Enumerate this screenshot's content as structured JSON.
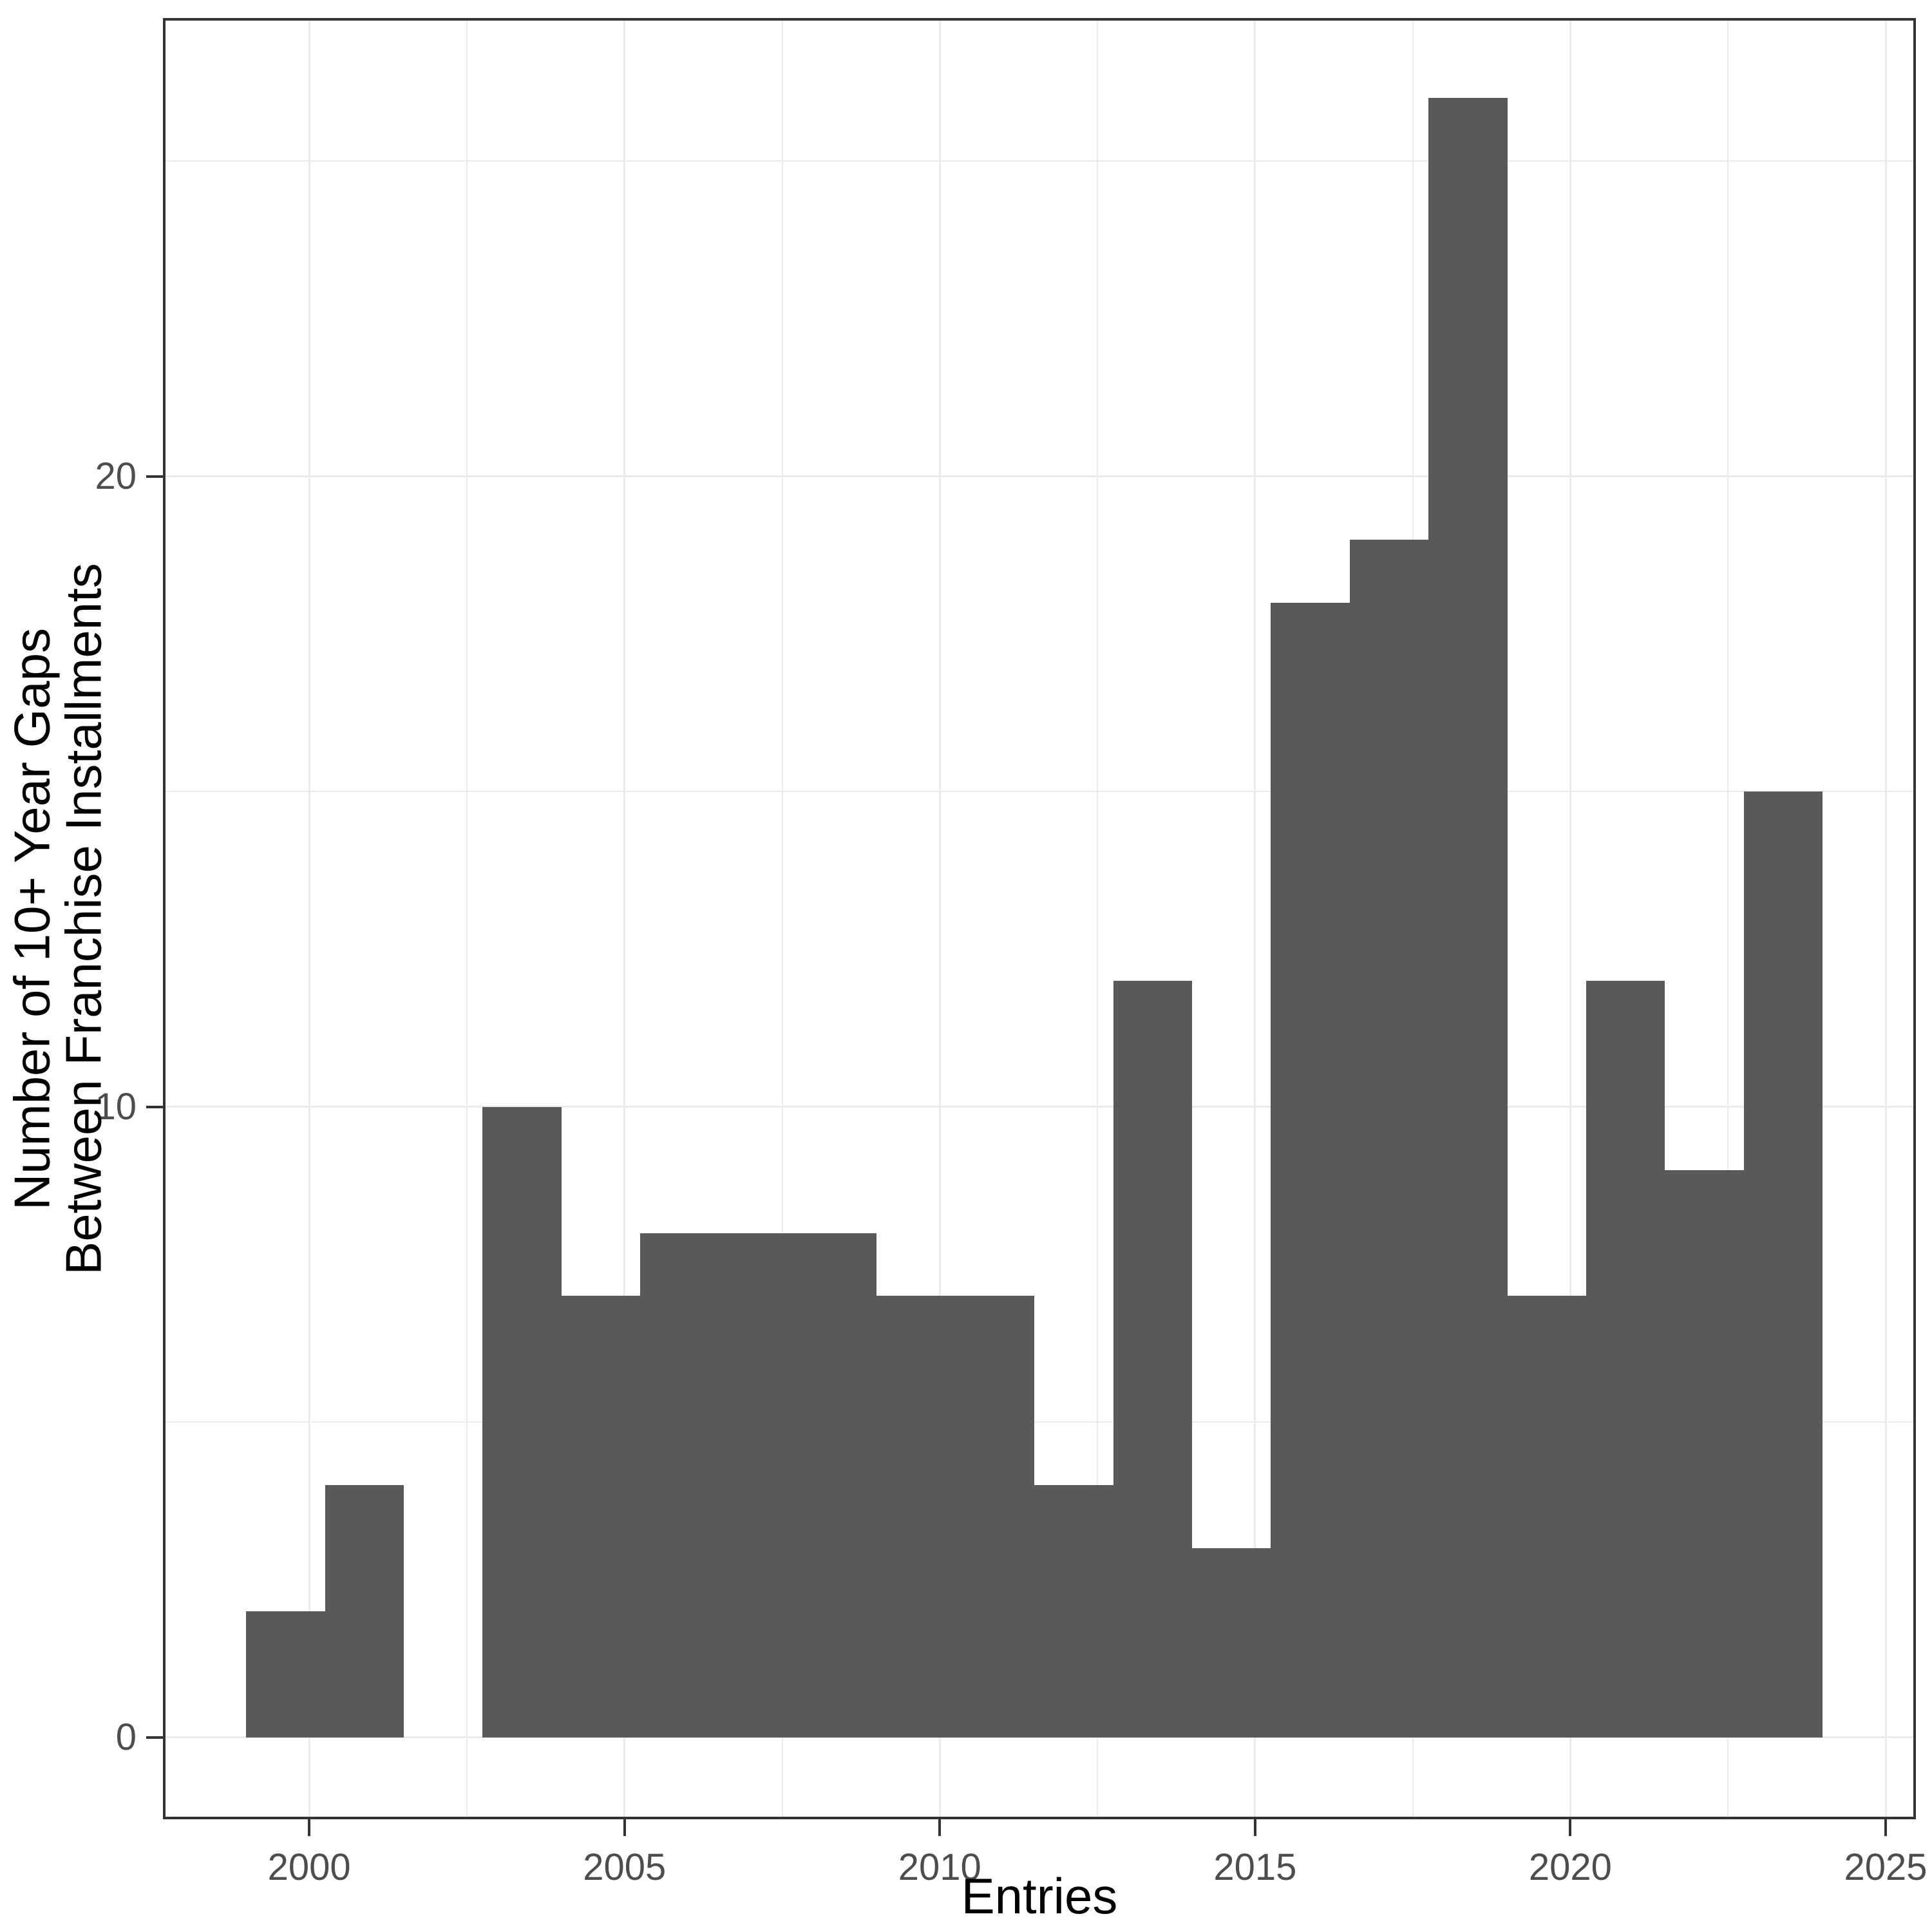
{
  "chart_data": {
    "type": "bar",
    "subtype": "histogram",
    "title": "",
    "xlabel": "Entries",
    "ylabel_line1": "Number of 10+ Year Gaps",
    "ylabel_line2": "Between Franchise Installments",
    "bin_start": 1999,
    "bin_width": 1.25,
    "values": [
      2,
      4,
      0,
      10,
      7,
      8,
      8,
      8,
      7,
      7,
      4,
      12,
      3,
      18,
      19,
      26,
      7,
      12,
      9,
      15
    ],
    "bin_edges": [
      1999,
      2000.25,
      2001.5,
      2002.75,
      2004,
      2005.25,
      2006.5,
      2007.75,
      2009,
      2010.25,
      2011.5,
      2012.75,
      2014,
      2015.25,
      2016.5,
      2017.75,
      2019,
      2020.25,
      2021.5,
      2022.75,
      2024
    ],
    "x_major_ticks": [
      2000,
      2005,
      2010,
      2015,
      2020,
      2025
    ],
    "x_minor_gridlines": [
      1997.5,
      2002.5,
      2007.5,
      2012.5,
      2017.5,
      2022.5
    ],
    "y_major_ticks": [
      0,
      10,
      20
    ],
    "y_minor_gridlines": [
      5,
      15,
      25
    ],
    "xlim": [
      1997.68,
      2025.48
    ],
    "ylim": [
      -1.3,
      27.27
    ],
    "grid": true,
    "legend": false,
    "colors": {
      "bar_fill": "#595959",
      "panel_border": "#333333",
      "gridline": "#EBEBEB",
      "tick_mark": "#333333",
      "tick_label": "#4D4D4D",
      "axis_title": "#000000",
      "background": "#FFFFFF"
    }
  }
}
